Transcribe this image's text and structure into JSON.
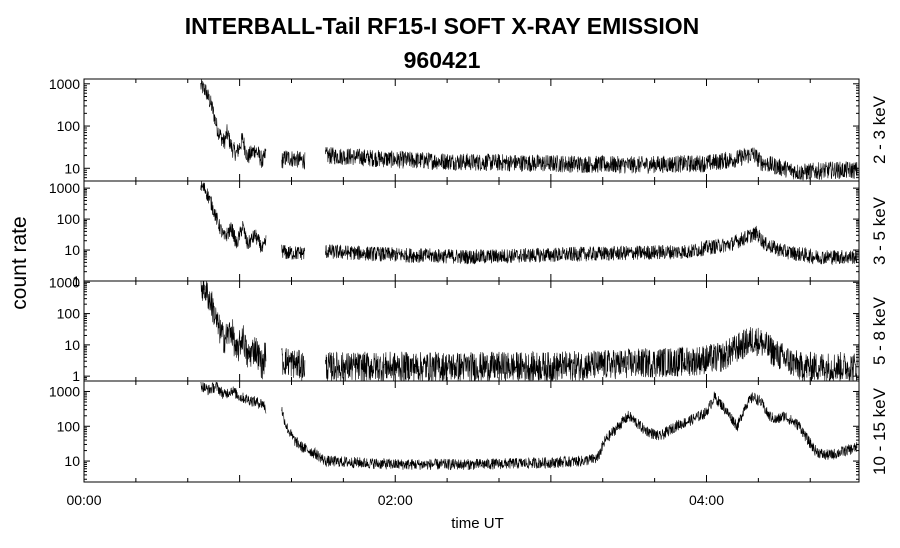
{
  "title": "INTERBALL-Tail RF15-I SOFT X-RAY EMISSION",
  "subtitle": "960421",
  "chart_data": {
    "type": "line",
    "title": "INTERBALL-Tail RF15-I SOFT X-RAY EMISSION",
    "subtitle": "960421",
    "xlabel": "time UT",
    "ylabel": "count rate",
    "x_unit": "hours UT",
    "xlim": [
      0,
      4.98
    ],
    "x_ticks": [
      0,
      2,
      4
    ],
    "x_tick_labels": [
      "00:00",
      "02:00",
      "04:00"
    ],
    "y_scale": "log",
    "grid": false,
    "panels": [
      {
        "label": "2 - 3 keV",
        "ylim": [
          5,
          1300
        ],
        "y_ticks": [
          10,
          100,
          1000
        ],
        "y_tick_labels": [
          "10",
          "100",
          "1000"
        ],
        "noise": 0.13,
        "gaps": [
          [
            1.17,
            1.27
          ],
          [
            1.42,
            1.55
          ]
        ],
        "x": [
          0.75,
          0.78,
          0.82,
          0.86,
          0.9,
          0.92,
          0.95,
          0.98,
          1.02,
          1.05,
          1.1,
          1.15,
          1.17,
          1.27,
          1.3,
          1.42,
          1.55,
          1.7,
          2.0,
          2.5,
          3.0,
          3.5,
          4.0,
          4.2,
          4.3,
          4.35,
          4.45,
          4.6,
          4.8,
          4.97
        ],
        "y": [
          900,
          700,
          300,
          80,
          40,
          70,
          30,
          22,
          50,
          18,
          28,
          14,
          25,
          15,
          18,
          15,
          20,
          19,
          16,
          14,
          13,
          12,
          13,
          17,
          22,
          14,
          11,
          8,
          9,
          9
        ]
      },
      {
        "label": "3 - 5 keV",
        "ylim": [
          1,
          1700
        ],
        "y_ticks": [
          1,
          10,
          100,
          1000
        ],
        "y_tick_labels": [
          "1",
          "10",
          "100",
          "1000"
        ],
        "noise": 0.15,
        "gaps": [
          [
            1.17,
            1.27
          ],
          [
            1.42,
            1.55
          ]
        ],
        "x": [
          0.75,
          0.78,
          0.82,
          0.86,
          0.9,
          0.95,
          0.98,
          1.02,
          1.05,
          1.1,
          1.15,
          1.17,
          1.27,
          1.3,
          1.42,
          1.55,
          2.0,
          2.5,
          3.0,
          3.5,
          3.9,
          4.0,
          4.15,
          4.25,
          4.32,
          4.38,
          4.5,
          4.7,
          4.97
        ],
        "y": [
          1200,
          900,
          300,
          80,
          25,
          50,
          15,
          60,
          15,
          30,
          10,
          20,
          10,
          8,
          8,
          9,
          7,
          6,
          7,
          8,
          9,
          12,
          15,
          25,
          35,
          15,
          9,
          6,
          6
        ]
      },
      {
        "label": "5 - 8 keV",
        "ylim": [
          0.7,
          1100
        ],
        "y_ticks": [
          1,
          10,
          100,
          1000
        ],
        "y_tick_labels": [
          "1",
          "10",
          "100",
          "1000"
        ],
        "noise": 0.3,
        "gaps": [
          [
            1.17,
            1.27
          ],
          [
            1.42,
            1.55
          ]
        ],
        "x": [
          0.75,
          0.78,
          0.82,
          0.86,
          0.9,
          0.95,
          0.98,
          1.02,
          1.05,
          1.1,
          1.15,
          1.17,
          1.27,
          1.3,
          1.42,
          1.55,
          2.0,
          3.0,
          3.5,
          3.9,
          4.1,
          4.2,
          4.3,
          4.35,
          4.45,
          4.6,
          4.97
        ],
        "y": [
          800,
          600,
          200,
          40,
          15,
          30,
          5,
          20,
          4,
          8,
          2,
          8,
          3,
          3,
          2,
          2,
          2,
          2,
          2.5,
          3,
          4,
          8,
          15,
          12,
          5,
          2,
          2
        ]
      },
      {
        "label": "10 - 15 keV",
        "ylim": [
          2.5,
          2000
        ],
        "y_ticks": [
          10,
          100,
          1000
        ],
        "y_tick_labels": [
          "10",
          "100",
          "1000"
        ],
        "noise": 0.1,
        "gaps": [
          [
            1.17,
            1.27
          ]
        ],
        "x": [
          0.75,
          0.8,
          0.85,
          0.9,
          0.95,
          1.0,
          1.05,
          1.1,
          1.15,
          1.17,
          1.27,
          1.3,
          1.35,
          1.4,
          1.45,
          1.5,
          1.55,
          2.0,
          2.5,
          3.0,
          3.2,
          3.3,
          3.35,
          3.45,
          3.5,
          3.6,
          3.7,
          3.8,
          3.9,
          4.0,
          4.05,
          4.1,
          4.15,
          4.2,
          4.25,
          4.3,
          4.35,
          4.4,
          4.45,
          4.5,
          4.6,
          4.65,
          4.7,
          4.75,
          4.8,
          4.9,
          4.97
        ],
        "y": [
          1500,
          1100,
          1400,
          800,
          1100,
          700,
          600,
          500,
          450,
          300,
          300,
          100,
          40,
          25,
          20,
          15,
          10,
          8,
          8,
          9,
          10,
          12,
          40,
          120,
          200,
          80,
          50,
          100,
          150,
          250,
          700,
          400,
          200,
          100,
          400,
          700,
          500,
          200,
          150,
          200,
          100,
          40,
          20,
          15,
          15,
          20,
          25
        ]
      }
    ]
  }
}
